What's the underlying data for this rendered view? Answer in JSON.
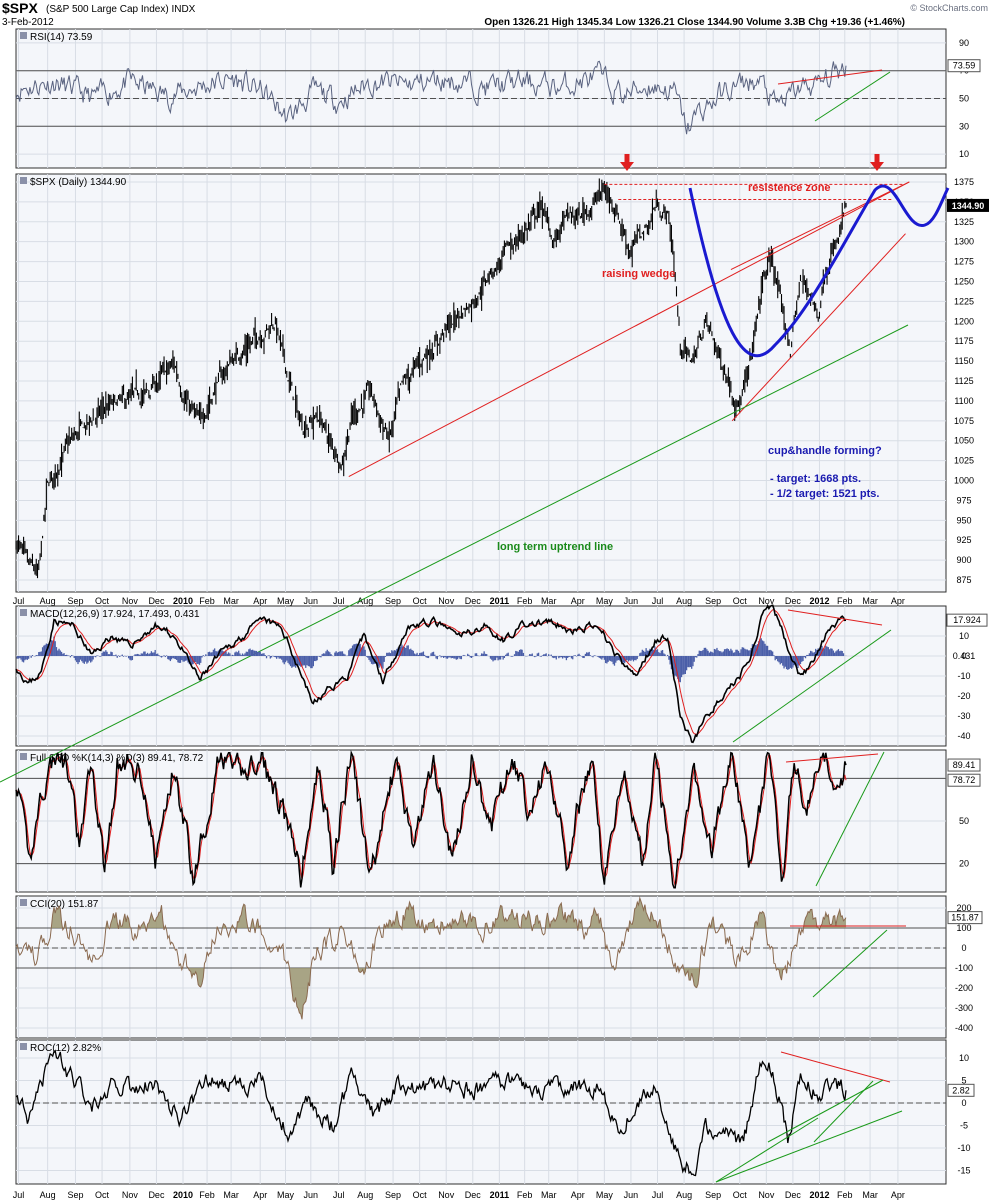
{
  "header": {
    "symbol": "$SPX",
    "name": "(S&P 500 Large Cap Index) INDX",
    "date": "3-Feb-2012",
    "ohlc": "Open 1326.21  High 1345.34  Low 1326.21  Close 1344.90  Volume 3.3B  Chg +19.36 (+1.46%)",
    "watermark": "© StockCharts.com"
  },
  "x_axis": {
    "months": [
      {
        "label": "Jul",
        "t": 2
      },
      {
        "label": "Aug",
        "t": 25
      },
      {
        "label": "Sep",
        "t": 47
      },
      {
        "label": "Oct",
        "t": 68
      },
      {
        "label": "Nov",
        "t": 90
      },
      {
        "label": "Dec",
        "t": 111
      },
      {
        "label": "2010",
        "t": 132,
        "bold": true
      },
      {
        "label": "Feb",
        "t": 151
      },
      {
        "label": "Mar",
        "t": 170
      },
      {
        "label": "Apr",
        "t": 193
      },
      {
        "label": "May",
        "t": 213
      },
      {
        "label": "Jun",
        "t": 233
      },
      {
        "label": "Jul",
        "t": 255
      },
      {
        "label": "Aug",
        "t": 276
      },
      {
        "label": "Sep",
        "t": 298
      },
      {
        "label": "Oct",
        "t": 319
      },
      {
        "label": "Nov",
        "t": 340
      },
      {
        "label": "Dec",
        "t": 361
      },
      {
        "label": "2011",
        "t": 382,
        "bold": true
      },
      {
        "label": "Feb",
        "t": 402
      },
      {
        "label": "Mar",
        "t": 421
      },
      {
        "label": "Apr",
        "t": 444
      },
      {
        "label": "May",
        "t": 465
      },
      {
        "label": "Jun",
        "t": 486
      },
      {
        "label": "Jul",
        "t": 507
      },
      {
        "label": "Aug",
        "t": 528
      },
      {
        "label": "Sep",
        "t": 551
      },
      {
        "label": "Oct",
        "t": 572
      },
      {
        "label": "Nov",
        "t": 593
      },
      {
        "label": "Dec",
        "t": 614
      },
      {
        "label": "2012",
        "t": 635,
        "bold": true
      },
      {
        "label": "Feb",
        "t": 655
      },
      {
        "label": "Mar",
        "t": 675
      },
      {
        "label": "Apr",
        "t": 697
      }
    ]
  },
  "chart_data": [
    {
      "type": "line",
      "panel": "RSI",
      "title": "RSI(14) 73.59",
      "ylim": [
        0,
        100
      ],
      "ticks": [
        10,
        30,
        50,
        70,
        90
      ],
      "ref_lines": [
        30,
        50,
        70
      ],
      "last_value_label": "73.59",
      "anchors": [
        [
          0,
          57
        ],
        [
          30,
          62
        ],
        [
          60,
          50
        ],
        [
          90,
          62
        ],
        [
          120,
          52
        ],
        [
          150,
          60
        ],
        [
          170,
          64
        ],
        [
          195,
          55
        ],
        [
          215,
          35
        ],
        [
          235,
          55
        ],
        [
          255,
          48
        ],
        [
          280,
          62
        ],
        [
          310,
          60
        ],
        [
          340,
          64
        ],
        [
          370,
          58
        ],
        [
          400,
          62
        ],
        [
          430,
          58
        ],
        [
          460,
          66
        ],
        [
          480,
          52
        ],
        [
          500,
          60
        ],
        [
          520,
          55
        ],
        [
          530,
          28
        ],
        [
          540,
          40
        ],
        [
          560,
          55
        ],
        [
          580,
          62
        ],
        [
          590,
          60
        ],
        [
          600,
          44
        ],
        [
          610,
          50
        ],
        [
          620,
          58
        ],
        [
          635,
          60
        ],
        [
          650,
          70
        ],
        [
          656,
          73.59
        ]
      ]
    },
    {
      "type": "line",
      "panel": "Price",
      "title": "$SPX (Daily) 1344.90",
      "ylim": [
        860,
        1385
      ],
      "ticks": [
        875,
        900,
        925,
        950,
        975,
        1000,
        1025,
        1050,
        1075,
        1100,
        1125,
        1150,
        1175,
        1200,
        1225,
        1250,
        1275,
        1300,
        1325,
        1350,
        1375
      ],
      "last_value_label": "1344.90",
      "anchors": [
        [
          0,
          925
        ],
        [
          10,
          890
        ],
        [
          18,
          880
        ],
        [
          25,
          990
        ],
        [
          40,
          1040
        ],
        [
          50,
          1060
        ],
        [
          70,
          1090
        ],
        [
          90,
          1100
        ],
        [
          105,
          1110
        ],
        [
          115,
          1130
        ],
        [
          125,
          1145
        ],
        [
          135,
          1100
        ],
        [
          145,
          1070
        ],
        [
          155,
          1110
        ],
        [
          170,
          1150
        ],
        [
          190,
          1180
        ],
        [
          205,
          1200
        ],
        [
          215,
          1130
        ],
        [
          225,
          1070
        ],
        [
          240,
          1080
        ],
        [
          250,
          1040
        ],
        [
          258,
          1025
        ],
        [
          265,
          1080
        ],
        [
          280,
          1110
        ],
        [
          295,
          1050
        ],
        [
          305,
          1115
        ],
        [
          320,
          1150
        ],
        [
          340,
          1190
        ],
        [
          360,
          1225
        ],
        [
          375,
          1260
        ],
        [
          390,
          1290
        ],
        [
          405,
          1320
        ],
        [
          415,
          1345
        ],
        [
          425,
          1300
        ],
        [
          435,
          1330
        ],
        [
          445,
          1330
        ],
        [
          457,
          1350
        ],
        [
          465,
          1365
        ],
        [
          475,
          1340
        ],
        [
          485,
          1290
        ],
        [
          500,
          1320
        ],
        [
          505,
          1345
        ],
        [
          515,
          1335
        ],
        [
          520,
          1280
        ],
        [
          525,
          1170
        ],
        [
          535,
          1150
        ],
        [
          545,
          1200
        ],
        [
          560,
          1140
        ],
        [
          572,
          1095
        ],
        [
          580,
          1140
        ],
        [
          590,
          1250
        ],
        [
          598,
          1280
        ],
        [
          605,
          1215
        ],
        [
          612,
          1165
        ],
        [
          620,
          1250
        ],
        [
          628,
          1235
        ],
        [
          634,
          1210
        ],
        [
          640,
          1270
        ],
        [
          650,
          1300
        ],
        [
          656,
          1344.9
        ]
      ]
    },
    {
      "type": "line",
      "panel": "MACD",
      "title": "MACD(12,26,9) 17.924, 17.493, 0.431",
      "ylim": [
        -45,
        25
      ],
      "ticks": [
        -40,
        -30,
        -20,
        -10,
        0,
        10
      ],
      "series_names": [
        "MACD",
        "Signal",
        "Histogram"
      ],
      "last_value_labels": [
        "17.924",
        "0.431"
      ],
      "anchors": [
        [
          0,
          -5
        ],
        [
          10,
          -14
        ],
        [
          20,
          -8
        ],
        [
          30,
          18
        ],
        [
          45,
          15
        ],
        [
          60,
          0
        ],
        [
          75,
          10
        ],
        [
          90,
          5
        ],
        [
          110,
          15
        ],
        [
          125,
          10
        ],
        [
          145,
          -12
        ],
        [
          160,
          0
        ],
        [
          175,
          8
        ],
        [
          195,
          18
        ],
        [
          210,
          14
        ],
        [
          225,
          -8
        ],
        [
          235,
          -24
        ],
        [
          250,
          -15
        ],
        [
          262,
          -10
        ],
        [
          275,
          10
        ],
        [
          290,
          -12
        ],
        [
          310,
          15
        ],
        [
          330,
          17
        ],
        [
          350,
          10
        ],
        [
          370,
          15
        ],
        [
          385,
          8
        ],
        [
          400,
          15
        ],
        [
          420,
          17
        ],
        [
          440,
          12
        ],
        [
          455,
          15
        ],
        [
          465,
          10
        ],
        [
          480,
          -5
        ],
        [
          490,
          -10
        ],
        [
          505,
          8
        ],
        [
          515,
          10
        ],
        [
          525,
          -30
        ],
        [
          535,
          -44
        ],
        [
          545,
          -30
        ],
        [
          560,
          -20
        ],
        [
          572,
          -10
        ],
        [
          580,
          0
        ],
        [
          590,
          20
        ],
        [
          598,
          25
        ],
        [
          610,
          5
        ],
        [
          620,
          -10
        ],
        [
          630,
          -3
        ],
        [
          640,
          10
        ],
        [
          650,
          17
        ],
        [
          656,
          17.924
        ]
      ]
    },
    {
      "type": "line",
      "panel": "Stochastic",
      "title": "Full STO %K(14,3) %D(3) 89.41, 78.72",
      "ylim": [
        0,
        100
      ],
      "ticks": [
        20,
        50,
        80
      ],
      "series_names": [
        "%K",
        "%D"
      ],
      "ref_lines": [
        20,
        80
      ],
      "last_value_labels": [
        "89.41",
        "78.72"
      ],
      "anchors": [
        [
          0,
          80
        ],
        [
          10,
          20
        ],
        [
          20,
          70
        ],
        [
          30,
          95
        ],
        [
          40,
          90
        ],
        [
          50,
          30
        ],
        [
          60,
          92
        ],
        [
          70,
          15
        ],
        [
          80,
          90
        ],
        [
          100,
          85
        ],
        [
          110,
          20
        ],
        [
          125,
          90
        ],
        [
          140,
          12
        ],
        [
          160,
          93
        ],
        [
          175,
          85
        ],
        [
          195,
          90
        ],
        [
          210,
          60
        ],
        [
          225,
          10
        ],
        [
          240,
          92
        ],
        [
          250,
          20
        ],
        [
          265,
          95
        ],
        [
          280,
          10
        ],
        [
          300,
          92
        ],
        [
          315,
          30
        ],
        [
          330,
          95
        ],
        [
          345,
          20
        ],
        [
          360,
          93
        ],
        [
          375,
          40
        ],
        [
          390,
          95
        ],
        [
          405,
          60
        ],
        [
          420,
          92
        ],
        [
          435,
          25
        ],
        [
          455,
          95
        ],
        [
          465,
          8
        ],
        [
          480,
          90
        ],
        [
          495,
          20
        ],
        [
          505,
          96
        ],
        [
          520,
          5
        ],
        [
          535,
          90
        ],
        [
          550,
          30
        ],
        [
          565,
          93
        ],
        [
          580,
          20
        ],
        [
          595,
          95
        ],
        [
          605,
          10
        ],
        [
          615,
          92
        ],
        [
          625,
          60
        ],
        [
          640,
          96
        ],
        [
          650,
          70
        ],
        [
          656,
          89.41
        ]
      ]
    },
    {
      "type": "line",
      "panel": "CCI",
      "title": "CCI(20) 151.87",
      "ylim": [
        -450,
        260
      ],
      "ticks": [
        -400,
        -300,
        -200,
        -100,
        0,
        100,
        200
      ],
      "ref_lines": [
        -100,
        0,
        100
      ],
      "last_value_label": "151.87",
      "anchors": [
        [
          0,
          50
        ],
        [
          15,
          -50
        ],
        [
          30,
          150
        ],
        [
          45,
          100
        ],
        [
          60,
          -80
        ],
        [
          75,
          150
        ],
        [
          95,
          80
        ],
        [
          115,
          150
        ],
        [
          130,
          -60
        ],
        [
          145,
          -150
        ],
        [
          160,
          120
        ],
        [
          180,
          150
        ],
        [
          200,
          80
        ],
        [
          215,
          -100
        ],
        [
          225,
          -380
        ],
        [
          235,
          -50
        ],
        [
          255,
          80
        ],
        [
          275,
          -80
        ],
        [
          290,
          100
        ],
        [
          310,
          180
        ],
        [
          330,
          120
        ],
        [
          350,
          150
        ],
        [
          370,
          100
        ],
        [
          390,
          160
        ],
        [
          410,
          120
        ],
        [
          430,
          160
        ],
        [
          450,
          100
        ],
        [
          460,
          200
        ],
        [
          470,
          -100
        ],
        [
          480,
          50
        ],
        [
          495,
          260
        ],
        [
          510,
          120
        ],
        [
          525,
          -100
        ],
        [
          535,
          -180
        ],
        [
          550,
          120
        ],
        [
          570,
          -50
        ],
        [
          590,
          150
        ],
        [
          605,
          -180
        ],
        [
          620,
          80
        ],
        [
          635,
          150
        ],
        [
          650,
          130
        ],
        [
          656,
          151.87
        ]
      ]
    },
    {
      "type": "line",
      "panel": "ROC",
      "title": "ROC(12) 2.82%",
      "ylim": [
        -18,
        14
      ],
      "ticks": [
        -15,
        -10,
        -5,
        0,
        5,
        10
      ],
      "ref_lines": [
        0
      ],
      "last_value_label": "2.82",
      "anchors": [
        [
          0,
          3
        ],
        [
          10,
          -5
        ],
        [
          20,
          3
        ],
        [
          30,
          12
        ],
        [
          45,
          5
        ],
        [
          60,
          0
        ],
        [
          75,
          4
        ],
        [
          90,
          3
        ],
        [
          110,
          5
        ],
        [
          130,
          -4
        ],
        [
          150,
          5
        ],
        [
          170,
          4
        ],
        [
          195,
          5
        ],
        [
          215,
          -7
        ],
        [
          230,
          0
        ],
        [
          250,
          -5
        ],
        [
          265,
          5
        ],
        [
          285,
          -3
        ],
        [
          300,
          4
        ],
        [
          320,
          3
        ],
        [
          340,
          4
        ],
        [
          360,
          3
        ],
        [
          380,
          5
        ],
        [
          400,
          4
        ],
        [
          420,
          3
        ],
        [
          440,
          4
        ],
        [
          460,
          3
        ],
        [
          475,
          -6
        ],
        [
          490,
          0
        ],
        [
          505,
          5
        ],
        [
          520,
          -10
        ],
        [
          535,
          -16
        ],
        [
          545,
          -6
        ],
        [
          560,
          -5
        ],
        [
          575,
          -10
        ],
        [
          588,
          10
        ],
        [
          598,
          8
        ],
        [
          610,
          -8
        ],
        [
          620,
          5
        ],
        [
          635,
          2
        ],
        [
          645,
          5
        ],
        [
          656,
          2.82
        ]
      ]
    }
  ],
  "annotations": {
    "resistance": "resistence zone",
    "wedge": "raising wedge",
    "uptrend": "long term uptrend line",
    "cup_title": "cup&handle forming?",
    "target": "- target: 1668 pts.",
    "half_target": "- 1/2 target: 1521 pts."
  },
  "colors": {
    "panel_bg": "#f4f6fa",
    "grid": "#d8dde5",
    "price_line": "#000000",
    "rsi_line": "#5a6380",
    "macd_signal": "#e02020",
    "macd_hist": "#4a5ea8",
    "cci_fill": "#9a9570",
    "cci_line": "#8a6a50",
    "trend_green": "#1a9a1a",
    "trend_red": "#e02020",
    "cup_blue": "#1a1ad0",
    "annotation_blue": "#1a1ab0",
    "annotation_green": "#1a8a1a"
  }
}
